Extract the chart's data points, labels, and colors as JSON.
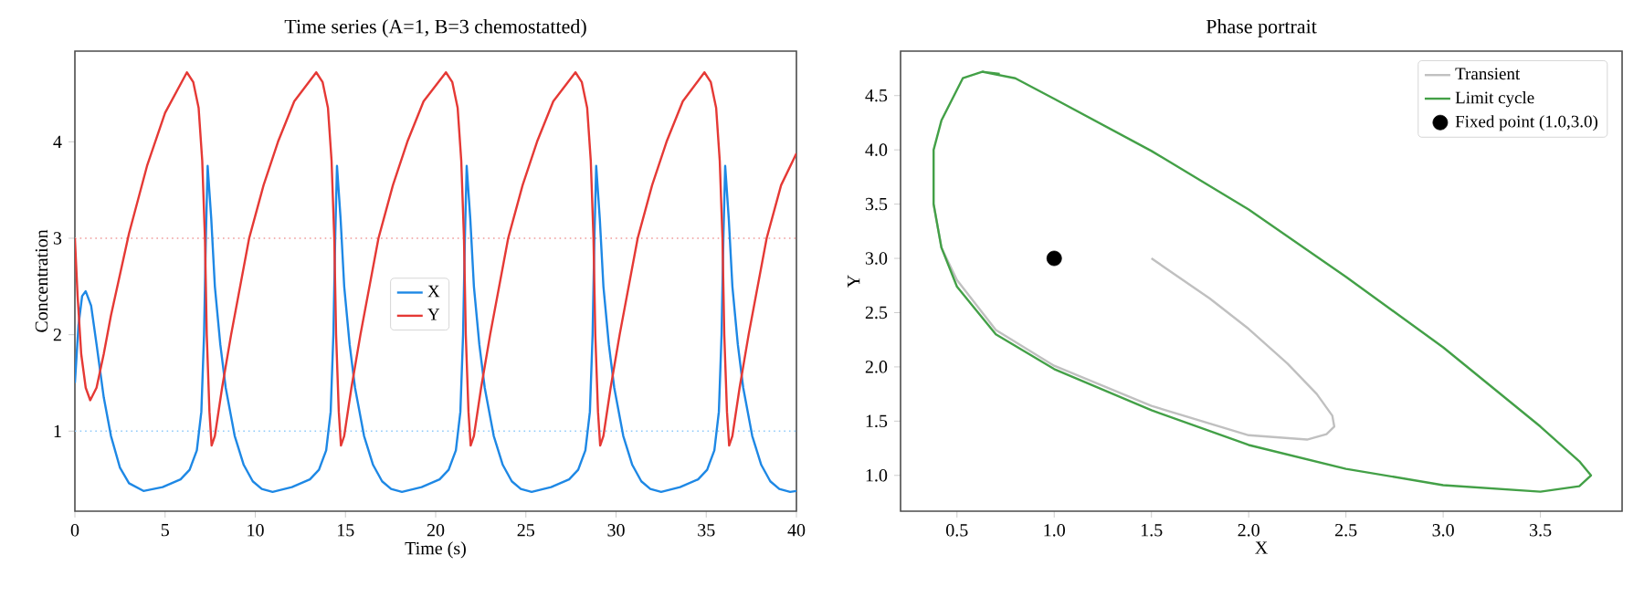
{
  "chart_data": [
    {
      "type": "line",
      "title": "Time series  (A=1, B=3 chemostatted)",
      "xlabel": "Time (s)",
      "ylabel": "Concentration",
      "xlim": [
        0,
        40
      ],
      "ylim": [
        0.17,
        4.94
      ],
      "xticks": [
        0,
        5,
        10,
        15,
        20,
        25,
        30,
        35,
        40
      ],
      "yticks": [
        1,
        2,
        3,
        4
      ],
      "legend": "center",
      "ref_lines": [
        {
          "axis": "y",
          "value": 1,
          "color": "#90caf9",
          "line_style": "dotted"
        },
        {
          "axis": "y",
          "value": 3,
          "color": "#ef9a9a",
          "line_style": "dotted"
        }
      ],
      "series": [
        {
          "name": "X",
          "color": "#1e88e5",
          "x": [
            0,
            0.2,
            0.4,
            0.6,
            0.9,
            1.2,
            1.6,
            2.0,
            2.5,
            3.0,
            3.8,
            4.86,
            5.86,
            6.36,
            6.76,
            7.01,
            7.16,
            7.26,
            7.36,
            7.56,
            7.76,
            8.06,
            8.36,
            8.86,
            9.36,
            9.86,
            10.36,
            10.96,
            12.03,
            13.03,
            13.53,
            13.93,
            14.18,
            14.33,
            14.43,
            14.53,
            14.73,
            14.93,
            15.23,
            15.53,
            16.03,
            16.53,
            17.03,
            17.53,
            18.13,
            19.22,
            20.22,
            20.72,
            21.12,
            21.37,
            21.52,
            21.62,
            21.72,
            21.92,
            22.12,
            22.42,
            22.72,
            23.22,
            23.72,
            24.22,
            24.72,
            25.32,
            26.4,
            27.4,
            27.9,
            28.3,
            28.55,
            28.7,
            28.8,
            28.9,
            29.1,
            29.3,
            29.6,
            29.9,
            30.4,
            30.9,
            31.4,
            31.9,
            32.5,
            33.55,
            34.55,
            35.05,
            35.45,
            35.7,
            35.85,
            35.95,
            36.05,
            36.25,
            36.45,
            36.75,
            37.05,
            37.55,
            38.05,
            38.55,
            39.05,
            39.65,
            40
          ],
          "values": [
            1.5,
            2.1,
            2.4,
            2.45,
            2.3,
            1.9,
            1.35,
            0.95,
            0.62,
            0.46,
            0.38,
            0.42,
            0.5,
            0.6,
            0.8,
            1.2,
            2.0,
            3.0,
            3.75,
            3.2,
            2.5,
            1.9,
            1.45,
            0.95,
            0.65,
            0.48,
            0.4,
            0.37,
            0.42,
            0.5,
            0.6,
            0.8,
            1.2,
            2.0,
            3.0,
            3.75,
            3.2,
            2.5,
            1.9,
            1.45,
            0.95,
            0.65,
            0.48,
            0.4,
            0.37,
            0.42,
            0.5,
            0.6,
            0.8,
            1.2,
            2.0,
            3.0,
            3.75,
            3.2,
            2.5,
            1.9,
            1.45,
            0.95,
            0.65,
            0.48,
            0.4,
            0.37,
            0.42,
            0.5,
            0.6,
            0.8,
            1.2,
            2.0,
            3.0,
            3.75,
            3.2,
            2.5,
            1.9,
            1.45,
            0.95,
            0.65,
            0.48,
            0.4,
            0.37,
            0.42,
            0.5,
            0.6,
            0.8,
            1.2,
            2.0,
            3.0,
            3.75,
            3.2,
            2.5,
            1.9,
            1.45,
            0.95,
            0.65,
            0.48,
            0.4,
            0.37,
            0.38
          ]
        },
        {
          "name": "Y",
          "color": "#e53935",
          "x": [
            0,
            0.15,
            0.35,
            0.6,
            0.85,
            1.2,
            1.6,
            2.0,
            3.0,
            4.0,
            5.0,
            6.21,
            6.56,
            6.86,
            7.06,
            7.21,
            7.31,
            7.46,
            7.58,
            7.76,
            8.16,
            8.66,
            9.66,
            10.46,
            11.26,
            12.16,
            13.38,
            13.73,
            14.03,
            14.23,
            14.38,
            14.48,
            14.63,
            14.75,
            14.93,
            15.33,
            15.83,
            16.83,
            17.63,
            18.43,
            19.33,
            20.57,
            20.92,
            21.22,
            21.42,
            21.57,
            21.67,
            21.82,
            21.94,
            22.12,
            22.52,
            23.02,
            24.02,
            24.82,
            25.62,
            26.52,
            27.75,
            28.1,
            28.4,
            28.6,
            28.75,
            28.85,
            29.0,
            29.12,
            29.3,
            29.7,
            30.2,
            31.2,
            32.0,
            32.8,
            33.7,
            34.9,
            35.25,
            35.55,
            35.75,
            35.9,
            36.0,
            36.15,
            36.27,
            36.45,
            36.85,
            37.35,
            38.35,
            39.15,
            40
          ],
          "values": [
            3.0,
            2.4,
            1.8,
            1.45,
            1.32,
            1.45,
            1.8,
            2.2,
            3.05,
            3.75,
            4.3,
            4.72,
            4.62,
            4.35,
            3.8,
            3.0,
            2.0,
            1.2,
            0.85,
            0.95,
            1.45,
            2.0,
            3.0,
            3.55,
            4.0,
            4.42,
            4.72,
            4.62,
            4.35,
            3.8,
            3.0,
            2.0,
            1.2,
            0.85,
            0.95,
            1.45,
            2.0,
            3.0,
            3.55,
            4.0,
            4.42,
            4.72,
            4.62,
            4.35,
            3.8,
            3.0,
            2.0,
            1.2,
            0.85,
            0.95,
            1.45,
            2.0,
            3.0,
            3.55,
            4.0,
            4.42,
            4.72,
            4.62,
            4.35,
            3.8,
            3.0,
            2.0,
            1.2,
            0.85,
            0.95,
            1.45,
            2.0,
            3.0,
            3.55,
            4.0,
            4.42,
            4.72,
            4.62,
            4.35,
            3.8,
            3.0,
            2.0,
            1.2,
            0.85,
            0.95,
            1.45,
            2.0,
            3.0,
            3.55,
            3.88
          ]
        }
      ]
    },
    {
      "type": "line",
      "title": "Phase portrait",
      "xlabel": "X",
      "ylabel": "Y",
      "xlim": [
        0.21,
        3.92
      ],
      "ylim": [
        0.67,
        4.91
      ],
      "legend": "top right",
      "xticks": [
        {
          "value": 0.5,
          "label": "0.5"
        },
        {
          "value": 1,
          "label": "1.0"
        },
        {
          "value": 1.5,
          "label": "1.5"
        },
        {
          "value": 2,
          "label": "2.0"
        },
        {
          "value": 2.5,
          "label": "2.5"
        },
        {
          "value": 3,
          "label": "3.0"
        },
        {
          "value": 3.5,
          "label": "3.5"
        }
      ],
      "yticks": [
        {
          "value": 1,
          "label": "1.0"
        },
        {
          "value": 1.5,
          "label": "1.5"
        },
        {
          "value": 2,
          "label": "2.0"
        },
        {
          "value": 2.5,
          "label": "2.5"
        },
        {
          "value": 3,
          "label": "3.0"
        },
        {
          "value": 3.5,
          "label": "3.5"
        },
        {
          "value": 4,
          "label": "4.0"
        },
        {
          "value": 4.5,
          "label": "4.5"
        }
      ],
      "series": [
        {
          "name": "Transient",
          "color": "#c0c0c0",
          "x": [
            1.5,
            1.8,
            2.0,
            2.2,
            2.35,
            2.43,
            2.44,
            2.4,
            2.3,
            2.0,
            1.5,
            1.0,
            0.7,
            0.5,
            0.42,
            0.38
          ],
          "values": [
            3.0,
            2.63,
            2.35,
            2.03,
            1.75,
            1.55,
            1.45,
            1.38,
            1.33,
            1.37,
            1.64,
            2.01,
            2.34,
            2.8,
            3.1,
            3.5
          ]
        },
        {
          "name": "Limit cycle",
          "color": "#43a047",
          "x": [
            0.63,
            0.8,
            1.0,
            1.5,
            2.0,
            2.5,
            3.0,
            3.5,
            3.7,
            3.76,
            3.7,
            3.5,
            3.0,
            2.5,
            2.0,
            1.5,
            1.0,
            0.7,
            0.5,
            0.42,
            0.38,
            0.38,
            0.42,
            0.53,
            0.63,
            0.72
          ],
          "values": [
            4.72,
            4.66,
            4.47,
            3.99,
            3.45,
            2.83,
            2.18,
            1.45,
            1.13,
            1.0,
            0.9,
            0.85,
            0.91,
            1.06,
            1.28,
            1.6,
            1.98,
            2.3,
            2.74,
            3.1,
            3.5,
            4.0,
            4.27,
            4.66,
            4.72,
            4.7
          ]
        },
        {
          "name": "Fixed point (1.0,3.0)",
          "type": "scatter",
          "marker": "circle",
          "color": "#000000",
          "x": [
            1.0
          ],
          "values": [
            3.0
          ]
        }
      ]
    }
  ]
}
